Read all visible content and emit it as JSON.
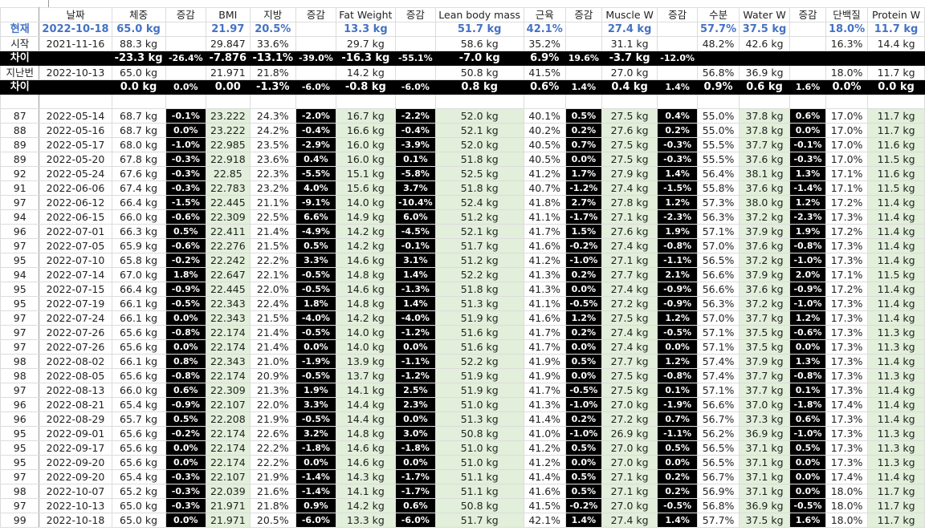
{
  "colors": {
    "current_row": "#4472c4",
    "change_column_bg": "#000000",
    "weight_column_bg": "#e2efda",
    "diff_row_bg": "#000000"
  },
  "headers": [
    "",
    "날짜",
    "체중",
    "증감",
    "BMI",
    "지방",
    "증감",
    "Fat Weight",
    "증감",
    "Lean body mass",
    "근육",
    "증감",
    "Muscle W",
    "증감",
    "수분",
    "Water W",
    "증감",
    "단백질",
    "Protein W"
  ],
  "summary": {
    "current": [
      "현재",
      "2022-10-18",
      "65.0 kg",
      "",
      "21.97",
      "20.5%",
      "",
      "13.3 kg",
      "",
      "51.7 kg",
      "42.1%",
      "",
      "27.4 kg",
      "",
      "57.7%",
      "37.5 kg",
      "",
      "18.0%",
      "11.7 kg"
    ],
    "start": [
      "시작",
      "2021-11-16",
      "88.3 kg",
      "",
      "29.847",
      "33.6%",
      "",
      "29.7 kg",
      "",
      "58.6 kg",
      "35.2%",
      "",
      "31.1 kg",
      "",
      "48.2%",
      "42.6 kg",
      "",
      "16.3%",
      "14.4 kg"
    ],
    "diff_start": [
      "차이",
      "",
      "-23.3 kg",
      "-26.4%",
      "-7.876",
      "-13.1%",
      "-39.0%",
      "-16.3 kg",
      "-55.1%",
      "-7.0 kg",
      "6.9%",
      "19.6%",
      "-3.7 kg",
      "-12.0%",
      "",
      "",
      "",
      "",
      ""
    ],
    "previous": [
      "지난번",
      "2022-10-13",
      "65.0 kg",
      "",
      "21.971",
      "21.8%",
      "",
      "14.2 kg",
      "",
      "50.8 kg",
      "41.5%",
      "",
      "27.0 kg",
      "",
      "56.8%",
      "36.9 kg",
      "",
      "18.0%",
      "11.7 kg"
    ],
    "diff_previous": [
      "차이",
      "",
      "0.0 kg",
      "0.0%",
      "0.00",
      "-1.3%",
      "-6.0%",
      "-0.8 kg",
      "-6.0%",
      "0.8 kg",
      "0.6%",
      "1.4%",
      "0.4 kg",
      "1.4%",
      "0.9%",
      "0.6 kg",
      "1.6%",
      "0.0%",
      "0.0 kg"
    ]
  },
  "rows": [
    [
      "87",
      "2022-05-14",
      "68.7 kg",
      "-0.1%",
      "23.222",
      "24.3%",
      "-2.0%",
      "16.7 kg",
      "-2.2%",
      "52.0 kg",
      "40.1%",
      "0.5%",
      "27.5 kg",
      "0.4%",
      "55.0%",
      "37.8 kg",
      "0.6%",
      "17.0%",
      "11.7 kg"
    ],
    [
      "88",
      "2022-05-16",
      "68.7 kg",
      "0.0%",
      "23.222",
      "24.2%",
      "-0.4%",
      "16.6 kg",
      "-0.4%",
      "52.1 kg",
      "40.2%",
      "0.2%",
      "27.6 kg",
      "0.2%",
      "55.0%",
      "37.8 kg",
      "0.0%",
      "17.0%",
      "11.7 kg"
    ],
    [
      "89",
      "2022-05-17",
      "68.0 kg",
      "-1.0%",
      "22.985",
      "23.5%",
      "-2.9%",
      "16.0 kg",
      "-3.9%",
      "52.0 kg",
      "40.5%",
      "0.7%",
      "27.5 kg",
      "-0.3%",
      "55.5%",
      "37.7 kg",
      "-0.1%",
      "17.0%",
      "11.6 kg"
    ],
    [
      "89",
      "2022-05-20",
      "67.8 kg",
      "-0.3%",
      "22.918",
      "23.6%",
      "0.4%",
      "16.0 kg",
      "0.1%",
      "51.8 kg",
      "40.5%",
      "0.0%",
      "27.5 kg",
      "-0.3%",
      "55.5%",
      "37.6 kg",
      "-0.3%",
      "17.0%",
      "11.5 kg"
    ],
    [
      "92",
      "2022-05-24",
      "67.6 kg",
      "-0.3%",
      "22.85",
      "22.3%",
      "-5.5%",
      "15.1 kg",
      "-5.8%",
      "52.5 kg",
      "41.2%",
      "1.7%",
      "27.9 kg",
      "1.4%",
      "56.4%",
      "38.1 kg",
      "1.3%",
      "17.1%",
      "11.6 kg"
    ],
    [
      "91",
      "2022-06-06",
      "67.4 kg",
      "-0.3%",
      "22.783",
      "23.2%",
      "4.0%",
      "15.6 kg",
      "3.7%",
      "51.8 kg",
      "40.7%",
      "-1.2%",
      "27.4 kg",
      "-1.5%",
      "55.8%",
      "37.6 kg",
      "-1.4%",
      "17.1%",
      "11.5 kg"
    ],
    [
      "97",
      "2022-06-12",
      "66.4 kg",
      "-1.5%",
      "22.445",
      "21.1%",
      "-9.1%",
      "14.0 kg",
      "-10.4%",
      "52.4 kg",
      "41.8%",
      "2.7%",
      "27.8 kg",
      "1.2%",
      "57.3%",
      "38.0 kg",
      "1.2%",
      "17.2%",
      "11.4 kg"
    ],
    [
      "94",
      "2022-06-15",
      "66.0 kg",
      "-0.6%",
      "22.309",
      "22.5%",
      "6.6%",
      "14.9 kg",
      "6.0%",
      "51.2 kg",
      "41.1%",
      "-1.7%",
      "27.1 kg",
      "-2.3%",
      "56.3%",
      "37.2 kg",
      "-2.3%",
      "17.3%",
      "11.4 kg"
    ],
    [
      "96",
      "2022-07-01",
      "66.3 kg",
      "0.5%",
      "22.411",
      "21.4%",
      "-4.9%",
      "14.2 kg",
      "-4.5%",
      "52.1 kg",
      "41.7%",
      "1.5%",
      "27.6 kg",
      "1.9%",
      "57.1%",
      "37.9 kg",
      "1.9%",
      "17.2%",
      "11.4 kg"
    ],
    [
      "97",
      "2022-07-05",
      "65.9 kg",
      "-0.6%",
      "22.276",
      "21.5%",
      "0.5%",
      "14.2 kg",
      "-0.1%",
      "51.7 kg",
      "41.6%",
      "-0.2%",
      "27.4 kg",
      "-0.8%",
      "57.0%",
      "37.6 kg",
      "-0.8%",
      "17.3%",
      "11.4 kg"
    ],
    [
      "95",
      "2022-07-10",
      "65.8 kg",
      "-0.2%",
      "22.242",
      "22.2%",
      "3.3%",
      "14.6 kg",
      "3.1%",
      "51.2 kg",
      "41.2%",
      "-1.0%",
      "27.1 kg",
      "-1.1%",
      "56.5%",
      "37.2 kg",
      "-1.0%",
      "17.3%",
      "11.4 kg"
    ],
    [
      "94",
      "2022-07-14",
      "67.0 kg",
      "1.8%",
      "22.647",
      "22.1%",
      "-0.5%",
      "14.8 kg",
      "1.4%",
      "52.2 kg",
      "41.3%",
      "0.2%",
      "27.7 kg",
      "2.1%",
      "56.6%",
      "37.9 kg",
      "2.0%",
      "17.1%",
      "11.5 kg"
    ],
    [
      "95",
      "2022-07-15",
      "66.4 kg",
      "-0.9%",
      "22.445",
      "22.0%",
      "-0.5%",
      "14.6 kg",
      "-1.3%",
      "51.8 kg",
      "41.3%",
      "0.0%",
      "27.4 kg",
      "-0.9%",
      "56.6%",
      "37.6 kg",
      "-0.9%",
      "17.2%",
      "11.4 kg"
    ],
    [
      "95",
      "2022-07-19",
      "66.1 kg",
      "-0.5%",
      "22.343",
      "22.4%",
      "1.8%",
      "14.8 kg",
      "1.4%",
      "51.3 kg",
      "41.1%",
      "-0.5%",
      "27.2 kg",
      "-0.9%",
      "56.3%",
      "37.2 kg",
      "-1.0%",
      "17.3%",
      "11.4 kg"
    ],
    [
      "97",
      "2022-07-24",
      "66.1 kg",
      "0.0%",
      "22.343",
      "21.5%",
      "-4.0%",
      "14.2 kg",
      "-4.0%",
      "51.9 kg",
      "41.6%",
      "1.2%",
      "27.5 kg",
      "1.2%",
      "57.0%",
      "37.7 kg",
      "1.2%",
      "17.3%",
      "11.4 kg"
    ],
    [
      "97",
      "2022-07-26",
      "65.6 kg",
      "-0.8%",
      "22.174",
      "21.4%",
      "-0.5%",
      "14.0 kg",
      "-1.2%",
      "51.6 kg",
      "41.7%",
      "0.2%",
      "27.4 kg",
      "-0.5%",
      "57.1%",
      "37.5 kg",
      "-0.6%",
      "17.3%",
      "11.3 kg"
    ],
    [
      "97",
      "2022-07-26",
      "65.6 kg",
      "0.0%",
      "22.174",
      "21.4%",
      "0.0%",
      "14.0 kg",
      "0.0%",
      "51.6 kg",
      "41.7%",
      "0.0%",
      "27.4 kg",
      "0.0%",
      "57.1%",
      "37.5 kg",
      "0.0%",
      "17.3%",
      "11.3 kg"
    ],
    [
      "98",
      "2022-08-02",
      "66.1 kg",
      "0.8%",
      "22.343",
      "21.0%",
      "-1.9%",
      "13.9 kg",
      "-1.1%",
      "52.2 kg",
      "41.9%",
      "0.5%",
      "27.7 kg",
      "1.2%",
      "57.4%",
      "37.9 kg",
      "1.3%",
      "17.3%",
      "11.4 kg"
    ],
    [
      "98",
      "2022-08-05",
      "65.6 kg",
      "-0.8%",
      "22.174",
      "20.9%",
      "-0.5%",
      "13.7 kg",
      "-1.2%",
      "51.9 kg",
      "41.9%",
      "0.0%",
      "27.5 kg",
      "-0.8%",
      "57.4%",
      "37.7 kg",
      "-0.8%",
      "17.3%",
      "11.3 kg"
    ],
    [
      "97",
      "2022-08-13",
      "66.0 kg",
      "0.6%",
      "22.309",
      "21.3%",
      "1.9%",
      "14.1 kg",
      "2.5%",
      "51.9 kg",
      "41.7%",
      "-0.5%",
      "27.5 kg",
      "0.1%",
      "57.1%",
      "37.7 kg",
      "0.1%",
      "17.3%",
      "11.4 kg"
    ],
    [
      "96",
      "2022-08-21",
      "65.4 kg",
      "-0.9%",
      "22.107",
      "22.0%",
      "3.3%",
      "14.4 kg",
      "2.3%",
      "51.0 kg",
      "41.3%",
      "-1.0%",
      "27.0 kg",
      "-1.9%",
      "56.6%",
      "37.0 kg",
      "-1.8%",
      "17.4%",
      "11.4 kg"
    ],
    [
      "96",
      "2022-08-29",
      "65.7 kg",
      "0.5%",
      "22.208",
      "21.9%",
      "-0.5%",
      "14.4 kg",
      "0.0%",
      "51.3 kg",
      "41.4%",
      "0.2%",
      "27.2 kg",
      "0.7%",
      "56.7%",
      "37.3 kg",
      "0.6%",
      "17.3%",
      "11.4 kg"
    ],
    [
      "95",
      "2022-09-01",
      "65.6 kg",
      "-0.2%",
      "22.174",
      "22.6%",
      "3.2%",
      "14.8 kg",
      "3.0%",
      "50.8 kg",
      "41.0%",
      "-1.0%",
      "26.9 kg",
      "-1.1%",
      "56.2%",
      "36.9 kg",
      "-1.0%",
      "17.3%",
      "11.3 kg"
    ],
    [
      "95",
      "2022-09-17",
      "65.6 kg",
      "0.0%",
      "22.174",
      "22.2%",
      "-1.8%",
      "14.6 kg",
      "-1.8%",
      "51.0 kg",
      "41.2%",
      "0.5%",
      "27.0 kg",
      "0.5%",
      "56.5%",
      "37.1 kg",
      "0.5%",
      "17.3%",
      "11.3 kg"
    ],
    [
      "95",
      "2022-09-20",
      "65.6 kg",
      "0.0%",
      "22.174",
      "22.2%",
      "0.0%",
      "14.6 kg",
      "0.0%",
      "51.0 kg",
      "41.2%",
      "0.0%",
      "27.0 kg",
      "0.0%",
      "56.5%",
      "37.1 kg",
      "0.0%",
      "17.3%",
      "11.3 kg"
    ],
    [
      "97",
      "2022-09-20",
      "65.4 kg",
      "-0.3%",
      "22.107",
      "21.9%",
      "-1.4%",
      "14.3 kg",
      "-1.7%",
      "51.1 kg",
      "41.4%",
      "0.5%",
      "27.1 kg",
      "0.2%",
      "56.7%",
      "37.1 kg",
      "0.0%",
      "17.4%",
      "11.4 kg"
    ],
    [
      "98",
      "2022-10-07",
      "65.2 kg",
      "-0.3%",
      "22.039",
      "21.6%",
      "-1.4%",
      "14.1 kg",
      "-1.7%",
      "51.1 kg",
      "41.6%",
      "0.5%",
      "27.1 kg",
      "0.2%",
      "56.9%",
      "37.1 kg",
      "0.0%",
      "18.0%",
      "11.7 kg"
    ],
    [
      "97",
      "2022-10-13",
      "65.0 kg",
      "-0.3%",
      "21.971",
      "21.8%",
      "0.9%",
      "14.2 kg",
      "0.6%",
      "50.8 kg",
      "41.5%",
      "-0.2%",
      "27.0 kg",
      "-0.5%",
      "56.8%",
      "36.9 kg",
      "-0.5%",
      "18.0%",
      "11.7 kg"
    ],
    [
      "99",
      "2022-10-18",
      "65.0 kg",
      "0.0%",
      "21.971",
      "20.5%",
      "-6.0%",
      "13.3 kg",
      "-6.0%",
      "51.7 kg",
      "42.1%",
      "1.4%",
      "27.4 kg",
      "1.4%",
      "57.7%",
      "37.5 kg",
      "1.6%",
      "18.0%",
      "11.7 kg"
    ]
  ]
}
